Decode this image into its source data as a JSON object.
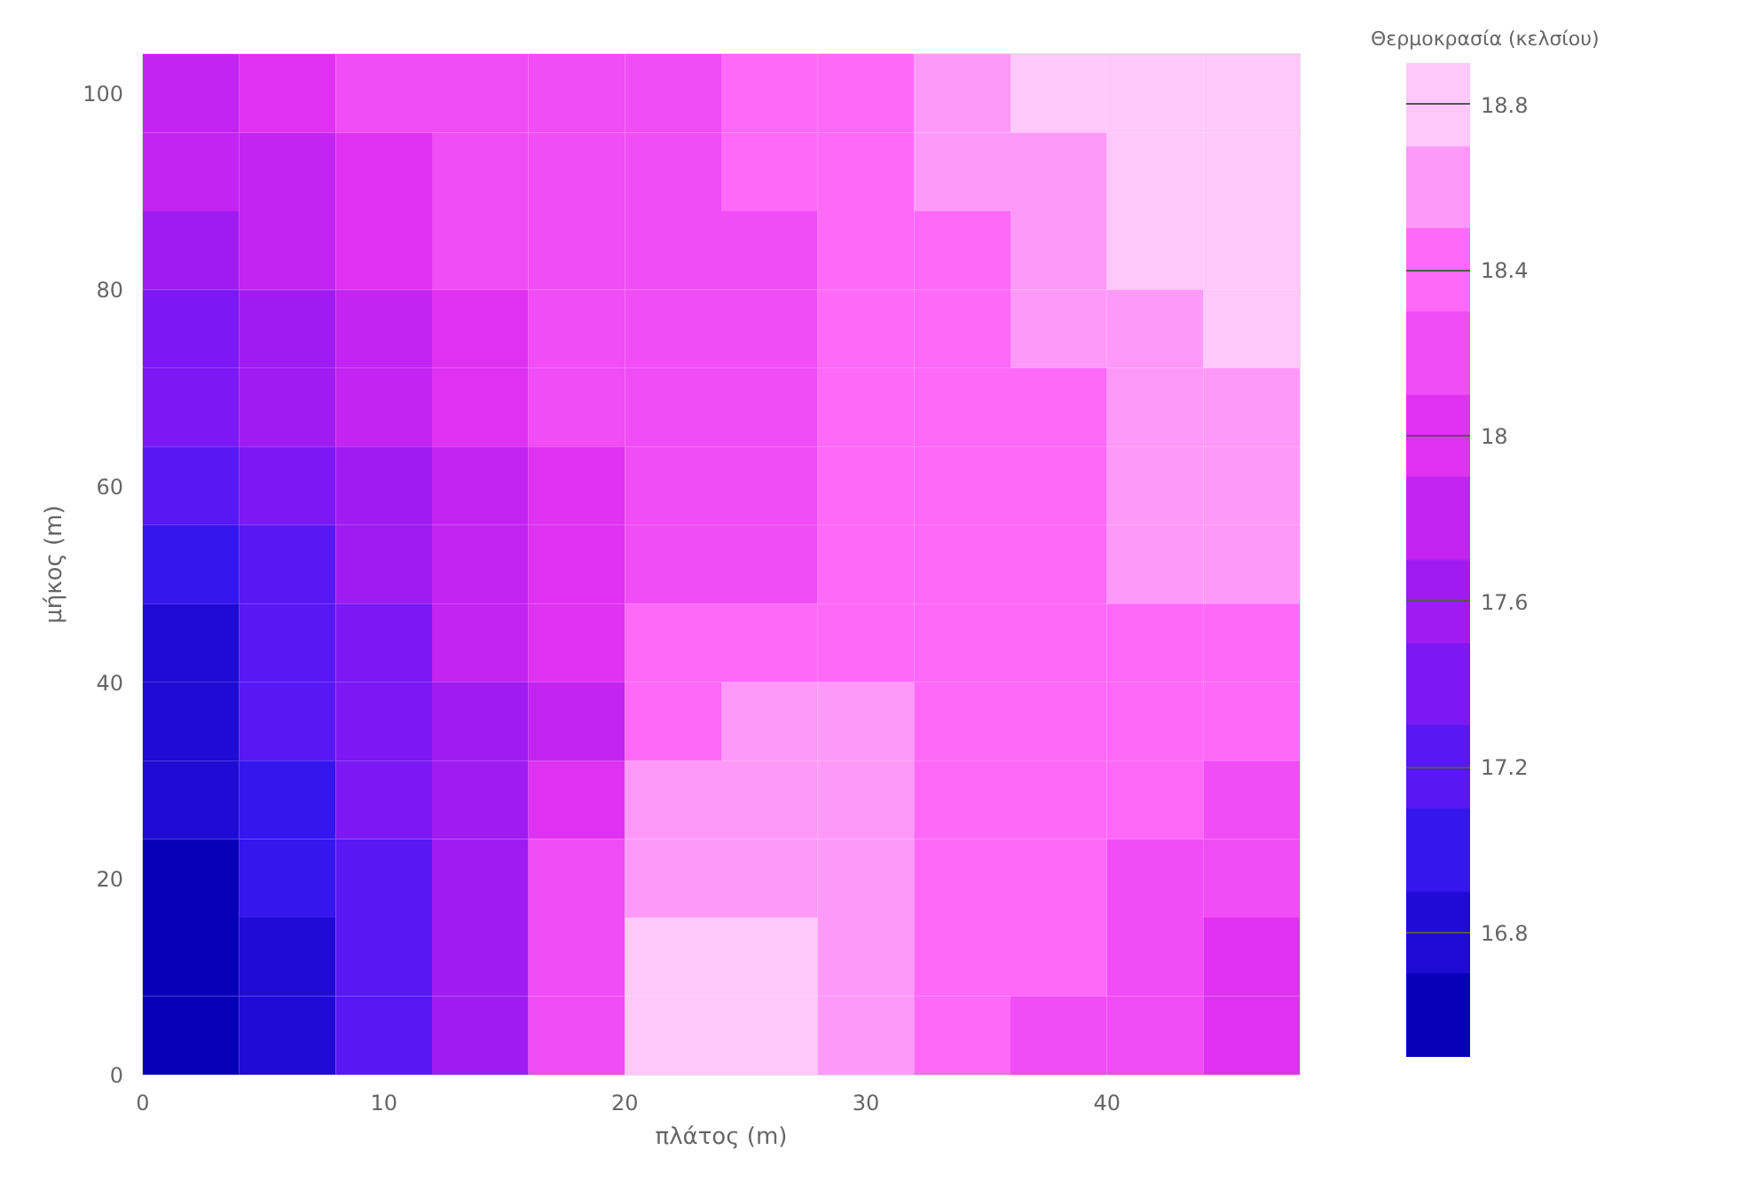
{
  "chart_data": {
    "type": "heatmap",
    "xlabel": "πλάτος (m)",
    "ylabel": "μήκος (m)",
    "clabel": "Θερμοκρασία (κελσίου)",
    "x": [
      2,
      6,
      10,
      14,
      18,
      22,
      26,
      30,
      34,
      38,
      42,
      46
    ],
    "y": [
      100,
      92,
      84,
      76,
      68,
      60,
      52,
      44,
      36,
      28,
      20,
      12,
      4
    ],
    "cells": [
      [
        17.85,
        18.05,
        18.1,
        18.1,
        18.15,
        18.25,
        18.35,
        18.45,
        18.55,
        18.7,
        18.8,
        18.85
      ],
      [
        17.7,
        17.9,
        18.05,
        18.1,
        18.1,
        18.2,
        18.3,
        18.4,
        18.5,
        18.6,
        18.75,
        18.85
      ],
      [
        17.55,
        17.75,
        17.95,
        18.1,
        18.1,
        18.15,
        18.25,
        18.35,
        18.45,
        18.55,
        18.7,
        18.8
      ],
      [
        17.45,
        17.65,
        17.85,
        18.05,
        18.1,
        18.15,
        18.25,
        18.3,
        18.4,
        18.5,
        18.65,
        18.75
      ],
      [
        17.3,
        17.5,
        17.75,
        17.95,
        18.1,
        18.1,
        18.25,
        18.3,
        18.35,
        18.45,
        18.55,
        18.65
      ],
      [
        17.1,
        17.35,
        17.6,
        17.85,
        18.05,
        18.1,
        18.25,
        18.3,
        18.3,
        18.45,
        18.5,
        18.55
      ],
      [
        16.95,
        17.25,
        17.5,
        17.75,
        18.0,
        18.1,
        18.25,
        18.3,
        18.35,
        18.45,
        18.5,
        18.5
      ],
      [
        16.9,
        17.15,
        17.4,
        17.7,
        17.95,
        18.3,
        18.35,
        18.4,
        18.45,
        18.45,
        18.45,
        18.4
      ],
      [
        16.85,
        17.1,
        17.35,
        17.65,
        17.9,
        18.45,
        18.5,
        18.5,
        18.45,
        18.45,
        18.4,
        18.3
      ],
      [
        16.75,
        17.0,
        17.3,
        17.6,
        17.95,
        18.5,
        18.55,
        18.5,
        18.45,
        18.4,
        18.3,
        18.15
      ],
      [
        16.7,
        16.95,
        17.25,
        17.55,
        18.1,
        18.6,
        18.65,
        18.55,
        18.45,
        18.35,
        18.2,
        18.1
      ],
      [
        16.65,
        16.9,
        17.2,
        17.5,
        18.2,
        18.7,
        18.7,
        18.6,
        18.45,
        18.3,
        18.15,
        18.0
      ],
      [
        16.55,
        16.85,
        17.15,
        17.5,
        18.25,
        18.85,
        18.75,
        18.55,
        18.4,
        18.25,
        18.1,
        17.95
      ]
    ],
    "clim": [
      16.5,
      18.9
    ],
    "cticks": [
      16.8,
      17.2,
      17.6,
      18,
      18.4,
      18.8
    ],
    "xlim": [
      0,
      48
    ],
    "ylim": [
      0,
      104
    ],
    "xticks": [
      0,
      10,
      20,
      30,
      40
    ],
    "yticks": [
      0,
      20,
      40,
      60,
      80,
      100
    ],
    "grid": false
  }
}
